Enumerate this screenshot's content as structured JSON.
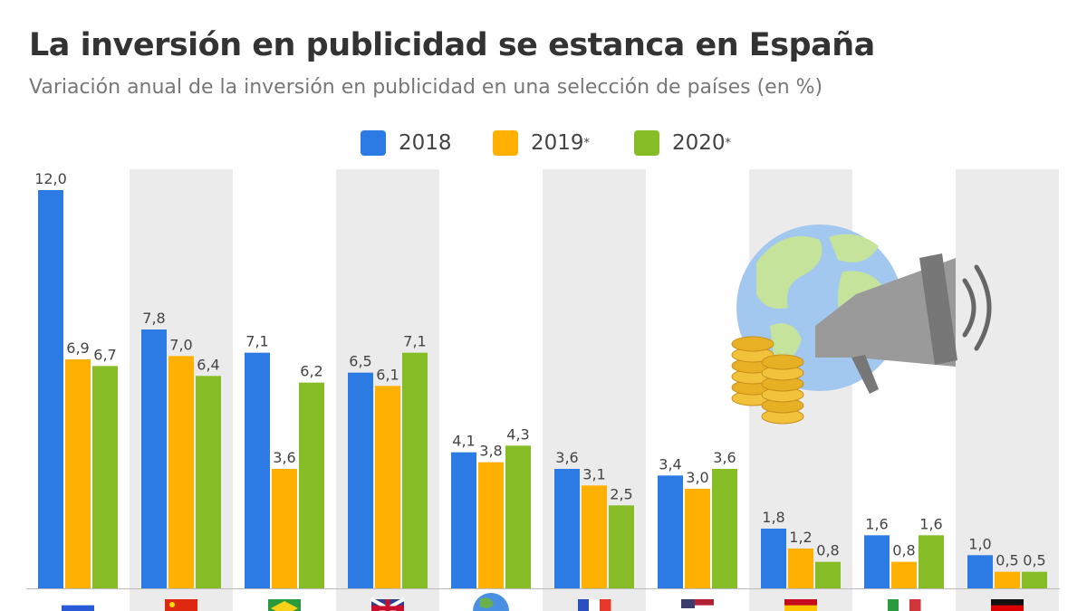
{
  "chart_data": {
    "type": "bar",
    "title": "La inversión en publicidad se estanca en España",
    "subtitle": "Variación anual de la inversión en publicidad en una selección de países (en %)",
    "categories": [
      "Rusia",
      "China",
      "Brasil",
      "Reino Unido",
      "Mundo",
      "Francia",
      "Estados Unidos",
      "España",
      "Italia",
      "Alemania"
    ],
    "category_icons": [
      "flag-russia",
      "flag-china",
      "flag-brazil",
      "flag-uk",
      "globe",
      "flag-france",
      "flag-usa",
      "flag-spain",
      "flag-italy",
      "flag-germany"
    ],
    "series": [
      {
        "name": "2018",
        "note": "",
        "color": "#2c7be5",
        "values": [
          12.0,
          7.8,
          7.1,
          6.5,
          4.1,
          3.6,
          3.4,
          1.8,
          1.6,
          1.0
        ]
      },
      {
        "name": "2019",
        "note": "*",
        "color": "#ffb000",
        "values": [
          6.9,
          7.0,
          3.6,
          6.1,
          3.8,
          3.1,
          3.0,
          1.2,
          0.8,
          0.5
        ]
      },
      {
        "name": "2020",
        "note": "*",
        "color": "#86bc25",
        "values": [
          6.7,
          6.4,
          6.2,
          7.1,
          4.3,
          2.5,
          3.6,
          0.8,
          1.6,
          0.5
        ]
      }
    ],
    "labels": [
      [
        "12,0",
        "7,8",
        "7,1",
        "6,5",
        "4,1",
        "3,6",
        "3,4",
        "1,8",
        "1,6",
        "1,0"
      ],
      [
        "6,9",
        "7,0",
        "3,6",
        "6,1",
        "3,8",
        "3,1",
        "3,0",
        "1,2",
        "0,8",
        "0,5"
      ],
      [
        "6,7",
        "6,4",
        "6,2",
        "7,1",
        "4,3",
        "2,5",
        "3,6",
        "0,8",
        "1,6",
        "0,5"
      ]
    ],
    "ylim": [
      0,
      12
    ],
    "grid": false,
    "legend": "top-center",
    "alternating_background": "#ebebeb"
  }
}
